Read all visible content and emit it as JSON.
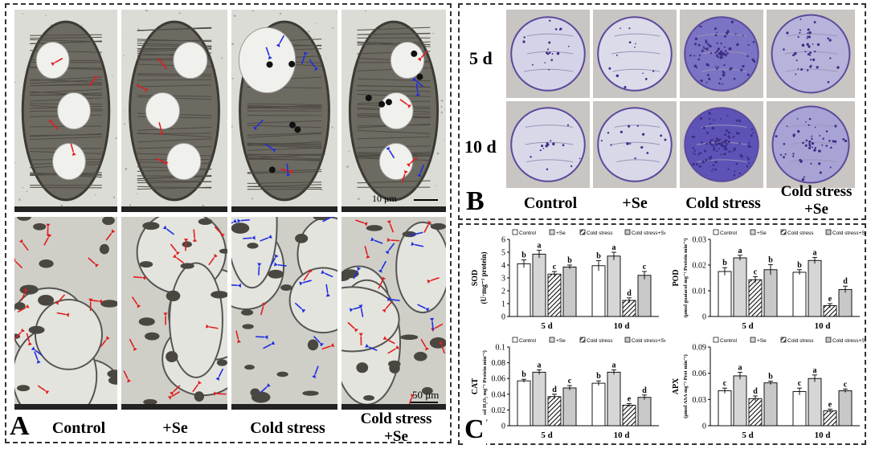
{
  "panelA": {
    "letter": "A",
    "columns": [
      "Control",
      "+Se",
      "Cold stress",
      "Cold stress\n+Se"
    ],
    "scale_top": "10 μm",
    "scale_bottom": "50 μm"
  },
  "panelB": {
    "letter": "B",
    "rows": [
      "5 d",
      "10 d"
    ],
    "columns": [
      "Control",
      "+Se",
      "Cold stress",
      "Cold stress\n+Se"
    ],
    "stain_intensity": [
      [
        0.15,
        0.1,
        0.75,
        0.35
      ],
      [
        0.12,
        0.12,
        0.95,
        0.45
      ]
    ]
  },
  "panelC": {
    "letter": "C",
    "legend": [
      "Control",
      "+Se",
      "Cold stress",
      "Cold stress+Se"
    ]
  },
  "chart_data": [
    {
      "type": "bar",
      "id": "sod",
      "ylabel": "SOD\n(U·mg⁻¹ protein)",
      "categories": [
        "5 d",
        "10 d"
      ],
      "ylim": [
        0,
        6
      ],
      "yticks": [
        0,
        1,
        2,
        3,
        4,
        5,
        6
      ],
      "series": [
        {
          "name": "Control",
          "values": [
            4.1,
            3.95
          ],
          "err": [
            0.3,
            0.4
          ],
          "letters": [
            "b",
            "b"
          ]
        },
        {
          "name": "+Se",
          "values": [
            4.85,
            4.7
          ],
          "err": [
            0.3,
            0.3
          ],
          "letters": [
            "a",
            "a"
          ]
        },
        {
          "name": "Cold stress",
          "values": [
            3.3,
            1.25
          ],
          "err": [
            0.2,
            0.2
          ],
          "letters": [
            "c",
            "d"
          ]
        },
        {
          "name": "Cold stress+Se",
          "values": [
            3.85,
            3.2
          ],
          "err": [
            0.15,
            0.3
          ],
          "letters": [
            "b",
            "c"
          ]
        }
      ]
    },
    {
      "type": "bar",
      "id": "pod",
      "ylabel": "POD\n(μmol guaiacol mg⁻¹ Protein min⁻¹)",
      "categories": [
        "5 d",
        "10 d"
      ],
      "ylim": [
        0,
        0.03
      ],
      "yticks": [
        0,
        0.01,
        0.02,
        0.03
      ],
      "series": [
        {
          "name": "Control",
          "values": [
            0.0175,
            0.0172
          ],
          "err": [
            0.0015,
            0.001
          ],
          "letters": [
            "b",
            "b"
          ]
        },
        {
          "name": "+Se",
          "values": [
            0.0228,
            0.0218
          ],
          "err": [
            0.001,
            0.0012
          ],
          "letters": [
            "a",
            "a"
          ]
        },
        {
          "name": "Cold stress",
          "values": [
            0.0143,
            0.0042
          ],
          "err": [
            0.0012,
            0.0008
          ],
          "letters": [
            "c",
            "e"
          ]
        },
        {
          "name": "Cold stress+Se",
          "values": [
            0.0182,
            0.0105
          ],
          "err": [
            0.002,
            0.0013
          ],
          "letters": [
            "b",
            "d"
          ]
        }
      ]
    },
    {
      "type": "bar",
      "id": "cat",
      "ylabel": "CAT\n(μmol H₂O₂ mg⁻¹ Protein min⁻¹)",
      "categories": [
        "5 d",
        "10 d"
      ],
      "ylim": [
        0,
        0.1
      ],
      "yticks": [
        0,
        0.02,
        0.04,
        0.06,
        0.08,
        0.1
      ],
      "series": [
        {
          "name": "Control",
          "values": [
            0.057,
            0.054
          ],
          "err": [
            0.002,
            0.003
          ],
          "letters": [
            "b",
            "b"
          ]
        },
        {
          "name": "+Se",
          "values": [
            0.068,
            0.068
          ],
          "err": [
            0.003,
            0.003
          ],
          "letters": [
            "a",
            "a"
          ]
        },
        {
          "name": "Cold stress",
          "values": [
            0.037,
            0.026
          ],
          "err": [
            0.003,
            0.002
          ],
          "letters": [
            "d",
            "e"
          ]
        },
        {
          "name": "Cold stress+Se",
          "values": [
            0.048,
            0.036
          ],
          "err": [
            0.003,
            0.003
          ],
          "letters": [
            "c",
            "d"
          ]
        }
      ]
    },
    {
      "type": "bar",
      "id": "apx",
      "ylabel": "APX\n(μmol ASA mg⁻¹ Prot min⁻¹)",
      "categories": [
        "5 d",
        "10 d"
      ],
      "ylim": [
        0,
        0.09
      ],
      "yticks": [
        0,
        0.03,
        0.06,
        0.09
      ],
      "series": [
        {
          "name": "Control",
          "values": [
            0.04,
            0.039
          ],
          "err": [
            0.003,
            0.004
          ],
          "letters": [
            "c",
            "c"
          ]
        },
        {
          "name": "+Se",
          "values": [
            0.057,
            0.054
          ],
          "err": [
            0.004,
            0.004
          ],
          "letters": [
            "a",
            "a"
          ]
        },
        {
          "name": "Cold stress",
          "values": [
            0.031,
            0.017
          ],
          "err": [
            0.003,
            0.002
          ],
          "letters": [
            "d",
            "e"
          ]
        },
        {
          "name": "Cold stress+Se",
          "values": [
            0.049,
            0.04
          ],
          "err": [
            0.002,
            0.002
          ],
          "letters": [
            "b",
            "c"
          ]
        }
      ]
    }
  ]
}
